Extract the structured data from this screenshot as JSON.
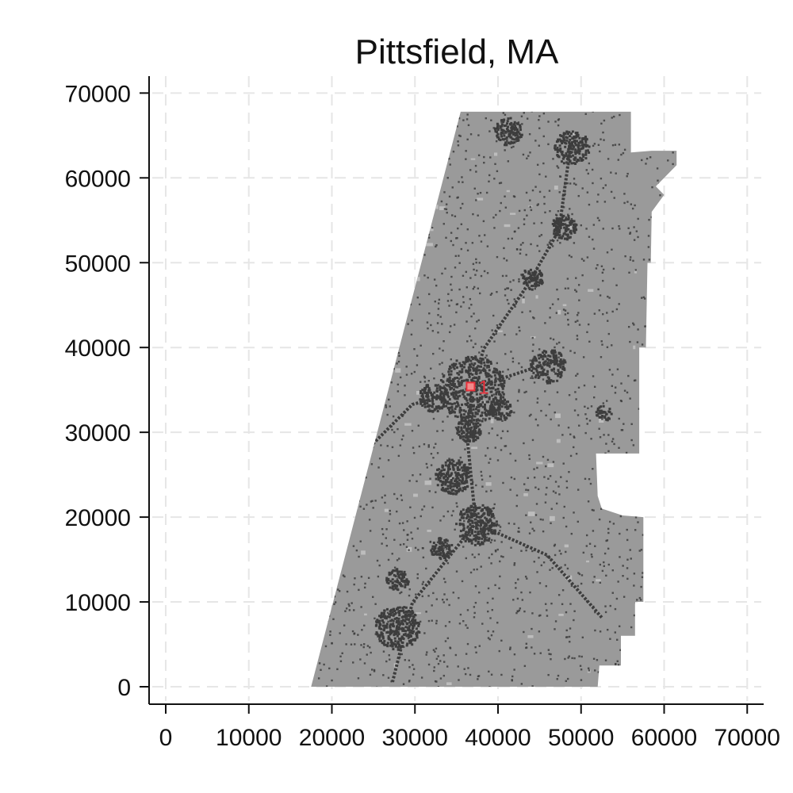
{
  "chart_data": {
    "type": "scatter",
    "title": "Pittsfield, MA",
    "xlabel": "",
    "ylabel": "",
    "xlim": [
      0,
      72000
    ],
    "ylim": [
      -2000,
      72000
    ],
    "x_ticks": [
      0,
      10000,
      20000,
      30000,
      40000,
      50000,
      60000,
      70000
    ],
    "y_ticks": [
      0,
      10000,
      20000,
      30000,
      40000,
      50000,
      60000,
      70000
    ],
    "x_tick_labels": [
      "0",
      "10000",
      "20000",
      "30000",
      "40000",
      "50000",
      "60000",
      "70000"
    ],
    "y_tick_labels": [
      "0",
      "10000",
      "20000",
      "30000",
      "40000",
      "50000",
      "60000",
      "70000"
    ],
    "grid": true,
    "region_boundary": [
      [
        17500,
        0
      ],
      [
        52000,
        0
      ],
      [
        52200,
        2500
      ],
      [
        54800,
        2500
      ],
      [
        54800,
        6000
      ],
      [
        56500,
        6000
      ],
      [
        56500,
        10000
      ],
      [
        57500,
        10000
      ],
      [
        57500,
        20000
      ],
      [
        55000,
        20200
      ],
      [
        52500,
        21000
      ],
      [
        52000,
        22500
      ],
      [
        51800,
        27500
      ],
      [
        57000,
        27500
      ],
      [
        57000,
        40000
      ],
      [
        57800,
        40000
      ],
      [
        58000,
        50000
      ],
      [
        58400,
        50000
      ],
      [
        58500,
        56000
      ],
      [
        60000,
        58000
      ],
      [
        59000,
        59000
      ],
      [
        60500,
        60500
      ],
      [
        61500,
        61500
      ],
      [
        61500,
        63200
      ],
      [
        58500,
        63200
      ],
      [
        56000,
        63000
      ],
      [
        56000,
        67800
      ],
      [
        35500,
        67800
      ]
    ],
    "region_color": "#9a9a9a",
    "developed_color": "#3d3d3d",
    "light_patch_color": "#bdbdbd",
    "markers": [
      {
        "name": "1",
        "x": 36700,
        "y": 35400,
        "color": "#e8323c"
      }
    ]
  }
}
